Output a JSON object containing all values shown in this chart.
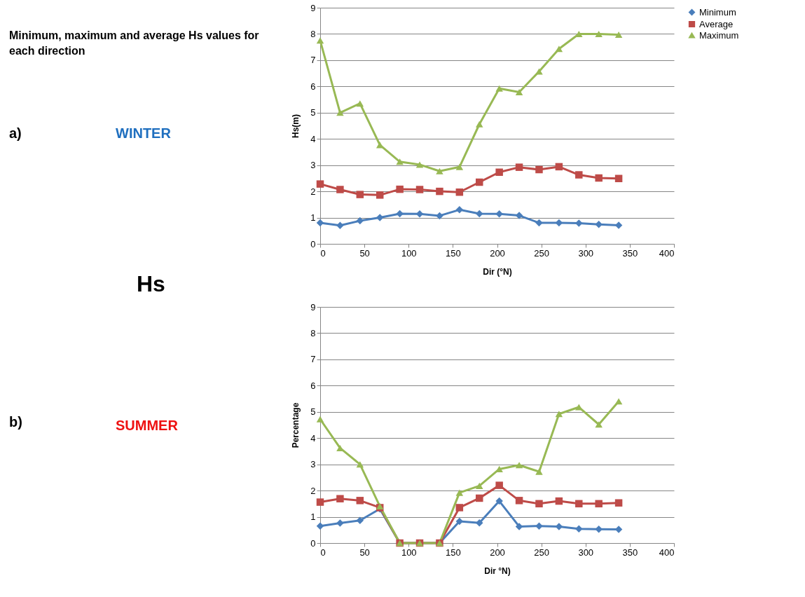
{
  "chart_data": [
    {
      "type": "line",
      "xlabel": "Dir (°N)",
      "ylabel": "Hs(m)",
      "xlim": [
        0,
        400
      ],
      "xticks": [
        0,
        50,
        100,
        150,
        200,
        250,
        300,
        350,
        400
      ],
      "ylim": [
        0,
        9
      ],
      "yticks": [
        0,
        1,
        2,
        3,
        4,
        5,
        6,
        7,
        8,
        9
      ],
      "grid": "y",
      "legend": "right",
      "line_style": "solid",
      "annotations": [
        "Minimum, maximum and average  Hs values for each direction",
        "a)",
        "WINTER",
        "Hs"
      ],
      "x": [
        0,
        22.5,
        45,
        67.5,
        90,
        112.5,
        135,
        157.5,
        180,
        202.5,
        225,
        247.5,
        270,
        292.5,
        315,
        337.5
      ],
      "series": [
        {
          "name": "Minimum",
          "color": "#4a7ebb",
          "marker": "diamond",
          "values": [
            0.8,
            0.7,
            0.88,
            1.0,
            1.15,
            1.14,
            1.07,
            1.3,
            1.15,
            1.14,
            1.08,
            0.8,
            0.8,
            0.79,
            0.74,
            0.71
          ]
        },
        {
          "name": "Average",
          "color": "#be4b48",
          "marker": "square",
          "values": [
            2.28,
            2.07,
            1.88,
            1.86,
            2.08,
            2.07,
            2.0,
            1.97,
            2.35,
            2.73,
            2.92,
            2.83,
            2.94,
            2.63,
            2.51,
            2.49
          ]
        },
        {
          "name": "Maximum",
          "color": "#98b954",
          "marker": "triangle",
          "values": [
            7.75,
            5.0,
            5.35,
            3.77,
            3.13,
            3.02,
            2.77,
            2.93,
            4.56,
            5.92,
            5.78,
            6.57,
            7.43,
            8.0,
            8.0,
            7.97
          ]
        }
      ]
    },
    {
      "type": "line",
      "xlabel": "Dir °N)",
      "ylabel": "Percentage",
      "xlim": [
        0,
        400
      ],
      "xticks": [
        0,
        50,
        100,
        150,
        200,
        250,
        300,
        350,
        400
      ],
      "ylim": [
        0,
        9
      ],
      "yticks": [
        0,
        1,
        2,
        3,
        4,
        5,
        6,
        7,
        8,
        9
      ],
      "grid": "y",
      "legend": "right",
      "line_style": "solid",
      "annotations": [
        "b)",
        "SUMMER"
      ],
      "x": [
        0,
        22.5,
        45,
        67.5,
        90,
        112.5,
        135,
        157.5,
        180,
        202.5,
        225,
        247.5,
        270,
        292.5,
        315,
        337.5
      ],
      "series": [
        {
          "name": "Minimum",
          "color": "#4a7ebb",
          "marker": "diamond",
          "values": [
            0.65,
            0.76,
            0.86,
            1.3,
            0,
            0,
            0,
            0.83,
            0.77,
            1.6,
            0.63,
            0.65,
            0.63,
            0.54,
            0.53,
            0.52
          ]
        },
        {
          "name": "Average",
          "color": "#be4b48",
          "marker": "square",
          "values": [
            1.56,
            1.69,
            1.62,
            1.35,
            0,
            0,
            0,
            1.35,
            1.71,
            2.2,
            1.62,
            1.5,
            1.6,
            1.5,
            1.5,
            1.53
          ]
        },
        {
          "name": "Maximum",
          "color": "#98b954",
          "marker": "triangle",
          "values": [
            4.72,
            3.62,
            3.0,
            1.4,
            0,
            0,
            0,
            1.92,
            2.18,
            2.82,
            2.97,
            2.72,
            4.92,
            5.18,
            4.52,
            5.4
          ]
        }
      ]
    }
  ]
}
